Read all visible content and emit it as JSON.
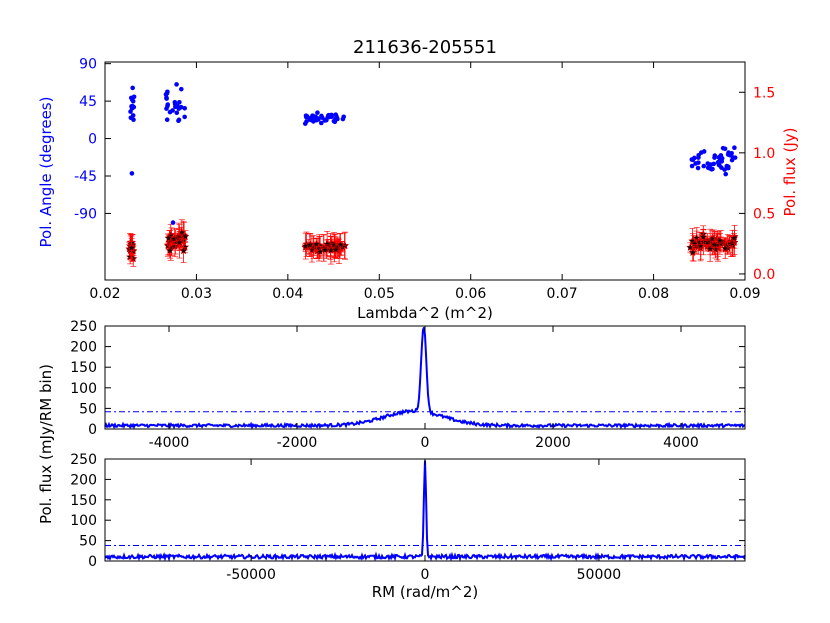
{
  "title": "211636-205551",
  "colors": {
    "angle": "#0000ff",
    "flux": "#ff0000",
    "spectrum": "#0000ff",
    "marker_face": "#1a0000"
  },
  "chart_data": [
    {
      "type": "scatter",
      "name": "top-panel",
      "title": "211636-205551",
      "xlabel": "Lambda^2 (m^2)",
      "ylabel": "Pol. Angle (degrees)",
      "ylabel_right": "Pol. flux (Jy)",
      "xlim": [
        0.02,
        0.09
      ],
      "ylim": [
        -170,
        92
      ],
      "ylim_right": [
        -0.05,
        1.75
      ],
      "x_ticks": [
        "0.02",
        "0.03",
        "0.04",
        "0.05",
        "0.06",
        "0.07",
        "0.08",
        "0.09"
      ],
      "y_ticks": [
        "90",
        "45",
        "0",
        "-45",
        "-90"
      ],
      "y_right_ticks": [
        "1.5",
        "1.0",
        "0.5",
        "0.0"
      ],
      "clusters": [
        {
          "x_range": [
            0.0226,
            0.0232
          ],
          "angle_center": 40,
          "angle_spread": 28,
          "flux_center": 0.2,
          "flux_spread": 0.13
        },
        {
          "x_range": [
            0.0266,
            0.0288
          ],
          "angle_center": 40,
          "angle_spread": 28,
          "flux_center": 0.28,
          "flux_spread": 0.13
        },
        {
          "x_range": [
            0.0419,
            0.0463
          ],
          "angle_center": 25,
          "angle_spread": 8,
          "flux_center": 0.22,
          "flux_spread": 0.05
        },
        {
          "x_range": [
            0.084,
            0.089
          ],
          "angle_center": -25,
          "angle_spread": 22,
          "flux_center": 0.25,
          "flux_spread": 0.09
        }
      ]
    },
    {
      "type": "line",
      "name": "middle-panel",
      "xlim": [
        -5000,
        5000
      ],
      "ylim": [
        0,
        250
      ],
      "x_ticks": [
        "-4000",
        "-2000",
        "0",
        "2000",
        "4000"
      ],
      "y_ticks": [
        "250",
        "200",
        "150",
        "100",
        "50",
        "0"
      ],
      "peak_x": -20,
      "peak_y": 210,
      "peak_width": 55,
      "broad_hump": 35,
      "noise_floor": 8,
      "threshold": 42
    },
    {
      "type": "line",
      "name": "bottom-panel",
      "xlabel": "RM (rad/m^2)",
      "xlim": [
        -92000,
        92000
      ],
      "ylim": [
        0,
        250
      ],
      "x_ticks": [
        "-50000",
        "0",
        "50000"
      ],
      "y_ticks": [
        "250",
        "200",
        "150",
        "100",
        "50",
        "0"
      ],
      "peak_x": 0,
      "peak_y": 232,
      "peak_width": 450,
      "noise_floor": 10,
      "threshold": 38
    }
  ],
  "shared_ylabel": "Pol. flux (mJy/RM bin)"
}
